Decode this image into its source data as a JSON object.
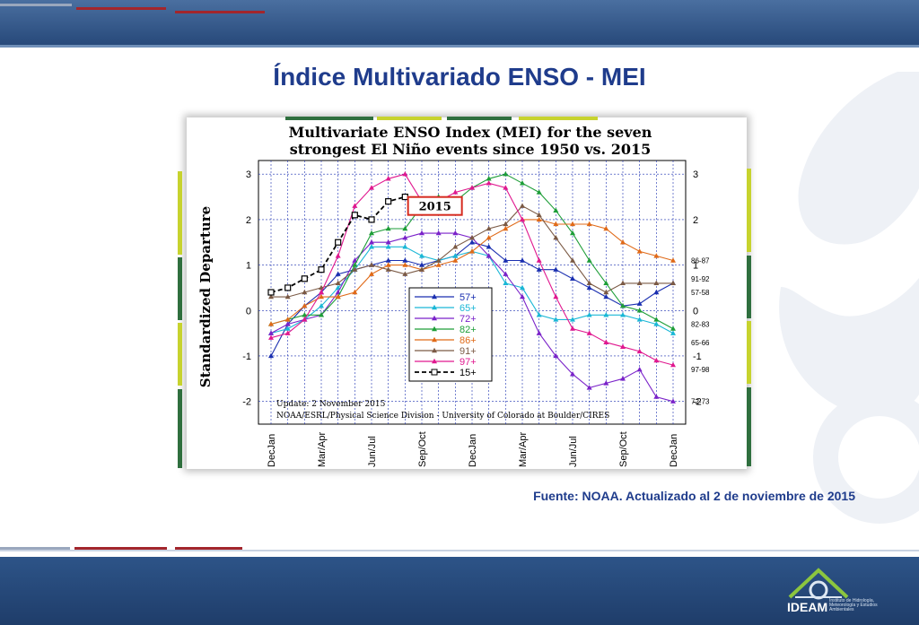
{
  "slide": {
    "title": "Índice Multivariado ENSO - MEI",
    "source_note": "Fuente: NOAA. Actualizado al 2 de noviembre de 2015",
    "logo_text": "IDEAM",
    "logo_subtext": "Instituto de Hidrología, Meteorología y Estudios Ambientales",
    "colors": {
      "title": "#1f3c8c",
      "bar": "#27497a",
      "accent_red": "#a3262c",
      "accent_gray": "#9aa7bd"
    }
  },
  "chart_data": {
    "type": "line",
    "title": "Multivariate ENSO Index (MEI) for the seven strongest El Niño events since 1950 vs. 2015",
    "title_lines": [
      "Multivariate ENSO Index (MEI) for the seven",
      "strongest El Niño events since 1950 vs. 2015"
    ],
    "ylabel": "Standardized Departure",
    "xlabel": "",
    "categories": [
      "DecJan",
      "JanFeb",
      "FebMar",
      "MarApr",
      "AprMay",
      "MayJun",
      "JunJul",
      "JulAug",
      "AugSep",
      "SepOct",
      "OctNov",
      "NovDec",
      "DecJan",
      "JanFeb",
      "FebMar",
      "MarApr",
      "AprMay",
      "MayJun",
      "JunJul",
      "JulAug",
      "AugSep",
      "SepOct",
      "OctNov",
      "NovDec",
      "DecJan"
    ],
    "x_tick_labels": [
      {
        "index": 0,
        "label": "DecJan"
      },
      {
        "index": 3,
        "label": "Mar/Apr"
      },
      {
        "index": 6,
        "label": "Jun/Jul"
      },
      {
        "index": 9,
        "label": "Sep/Oct"
      },
      {
        "index": 12,
        "label": "DecJan"
      },
      {
        "index": 15,
        "label": "Mar/Apr"
      },
      {
        "index": 18,
        "label": "Jun/Jul"
      },
      {
        "index": 21,
        "label": "Sep/Oct"
      },
      {
        "index": 24,
        "label": "DecJan"
      }
    ],
    "ylim": [
      -2.5,
      3.3
    ],
    "yticks": [
      -2,
      -1,
      0,
      1,
      2,
      3
    ],
    "grid": true,
    "legend_position": "lower-center",
    "series": [
      {
        "name": "57+",
        "color": "#1a2fb0",
        "marker": "triangle",
        "dashed": false,
        "values": [
          -1.0,
          -0.3,
          0.1,
          0.4,
          0.8,
          0.9,
          1.0,
          1.1,
          1.1,
          1.0,
          1.1,
          1.2,
          1.5,
          1.4,
          1.1,
          1.1,
          0.9,
          0.9,
          0.7,
          0.5,
          0.3,
          0.1,
          0.15,
          0.4,
          0.6
        ]
      },
      {
        "name": "65+",
        "color": "#1ab7d6",
        "marker": "triangle",
        "dashed": false,
        "values": [
          -0.5,
          -0.4,
          -0.2,
          0.1,
          0.5,
          0.9,
          1.4,
          1.4,
          1.4,
          1.2,
          1.1,
          1.2,
          1.3,
          1.2,
          0.6,
          0.5,
          -0.1,
          -0.2,
          -0.2,
          -0.1,
          -0.1,
          -0.1,
          -0.2,
          -0.3,
          -0.5
        ]
      },
      {
        "name": "72+",
        "color": "#7a22c9",
        "marker": "triangle",
        "dashed": false,
        "values": [
          -0.5,
          -0.3,
          -0.2,
          -0.1,
          0.4,
          1.1,
          1.5,
          1.5,
          1.6,
          1.7,
          1.7,
          1.7,
          1.6,
          1.2,
          0.8,
          0.3,
          -0.5,
          -1.0,
          -1.4,
          -1.7,
          -1.6,
          -1.5,
          -1.3,
          -1.9,
          -2.0
        ]
      },
      {
        "name": "82+",
        "color": "#1e9e38",
        "marker": "triangle",
        "dashed": false,
        "values": [
          -0.3,
          -0.2,
          -0.1,
          -0.1,
          0.3,
          1.0,
          1.7,
          1.8,
          1.8,
          2.3,
          2.5,
          2.4,
          2.7,
          2.9,
          3.0,
          2.8,
          2.6,
          2.2,
          1.7,
          1.1,
          0.6,
          0.1,
          0.0,
          -0.2,
          -0.4
        ]
      },
      {
        "name": "86+",
        "color": "#e06a18",
        "marker": "triangle",
        "dashed": false,
        "values": [
          -0.3,
          -0.2,
          0.1,
          0.3,
          0.3,
          0.4,
          0.8,
          1.0,
          1.0,
          0.9,
          1.0,
          1.1,
          1.3,
          1.6,
          1.8,
          2.0,
          2.0,
          1.9,
          1.9,
          1.9,
          1.8,
          1.5,
          1.3,
          1.2,
          1.1
        ]
      },
      {
        "name": "91+",
        "color": "#7b5a45",
        "marker": "triangle",
        "dashed": false,
        "values": [
          0.3,
          0.3,
          0.4,
          0.5,
          0.6,
          0.9,
          1.0,
          0.9,
          0.8,
          0.9,
          1.1,
          1.4,
          1.6,
          1.8,
          1.9,
          2.3,
          2.1,
          1.6,
          1.1,
          0.6,
          0.4,
          0.6,
          0.6,
          0.6,
          0.6
        ]
      },
      {
        "name": "97+",
        "color": "#e0188f",
        "marker": "triangle",
        "dashed": false,
        "values": [
          -0.6,
          -0.5,
          -0.2,
          0.4,
          1.2,
          2.3,
          2.7,
          2.9,
          3.0,
          2.4,
          2.4,
          2.6,
          2.7,
          2.8,
          2.7,
          2.0,
          1.1,
          0.3,
          -0.4,
          -0.5,
          -0.7,
          -0.8,
          -0.9,
          -1.1,
          -1.2
        ]
      },
      {
        "name": "15+",
        "color": "#000000",
        "marker": "square",
        "dashed": true,
        "values": [
          0.4,
          0.5,
          0.7,
          0.9,
          1.5,
          2.1,
          2.0,
          2.4,
          2.5,
          2.2,
          null,
          null,
          null,
          null,
          null,
          null,
          null,
          null,
          null,
          null,
          null,
          null,
          null,
          null,
          null
        ]
      }
    ],
    "right_labels": [
      {
        "text": "86-87",
        "y": 1.1
      },
      {
        "text": "91-92",
        "y": 0.7
      },
      {
        "text": "57-58",
        "y": 0.4
      },
      {
        "text": "82-83",
        "y": -0.3
      },
      {
        "text": "65-66",
        "y": -0.7
      },
      {
        "text": "97-98",
        "y": -1.3
      },
      {
        "text": "72-73",
        "y": -2.0
      }
    ],
    "annotation_2015": "2015",
    "update_note": "Update: 2 November 2015",
    "credit_note": "NOAA/ESRL/Physical Science Division - University of Colorado at Boulder/CIRES"
  }
}
